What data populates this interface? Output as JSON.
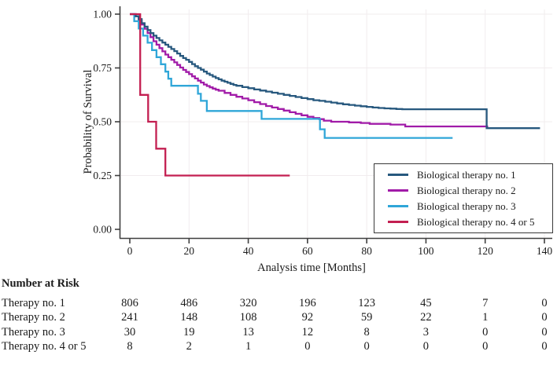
{
  "chart_data": {
    "type": "line",
    "subtype": "kaplan-meier-step",
    "title": "",
    "xlabel": "Analysis time [Months]",
    "ylabel": "Probability of Survival",
    "xlim": [
      0,
      140
    ],
    "ylim": [
      0.0,
      1.0
    ],
    "grid": true,
    "legend_position": "lower right",
    "x_ticks": [
      0,
      20,
      40,
      60,
      80,
      100,
      120,
      140
    ],
    "y_ticks": [
      {
        "value": 1.0,
        "label": "1.00"
      },
      {
        "value": 0.75,
        "label": "0.75"
      },
      {
        "value": 0.5,
        "label": "0.50"
      },
      {
        "value": 0.25,
        "label": "0.25"
      },
      {
        "value": 0.0,
        "label": "0.00"
      }
    ],
    "series": [
      {
        "name": "Biological therapy no. 2",
        "color": "#a11ba8",
        "points": [
          [
            0,
            1
          ],
          [
            2,
            0.99
          ],
          [
            3,
            0.972
          ],
          [
            4,
            0.952
          ],
          [
            5,
            0.932
          ],
          [
            6,
            0.912
          ],
          [
            7,
            0.893
          ],
          [
            8,
            0.874
          ],
          [
            9,
            0.858
          ],
          [
            10,
            0.842
          ],
          [
            11,
            0.827
          ],
          [
            12,
            0.812
          ],
          [
            13,
            0.8
          ],
          [
            14,
            0.788
          ],
          [
            15,
            0.776
          ],
          [
            16,
            0.764
          ],
          [
            17,
            0.752
          ],
          [
            18,
            0.741
          ],
          [
            19,
            0.731
          ],
          [
            20,
            0.721
          ],
          [
            21,
            0.711
          ],
          [
            22,
            0.701
          ],
          [
            23,
            0.691
          ],
          [
            24,
            0.682
          ],
          [
            25,
            0.673
          ],
          [
            26,
            0.666
          ],
          [
            27,
            0.66
          ],
          [
            28,
            0.654
          ],
          [
            29,
            0.649
          ],
          [
            30,
            0.644
          ],
          [
            32,
            0.634
          ],
          [
            34,
            0.625
          ],
          [
            36,
            0.616
          ],
          [
            38,
            0.608
          ],
          [
            40,
            0.6
          ],
          [
            42,
            0.591
          ],
          [
            44,
            0.582
          ],
          [
            46,
            0.573
          ],
          [
            48,
            0.566
          ],
          [
            50,
            0.559
          ],
          [
            52,
            0.552
          ],
          [
            54,
            0.544
          ],
          [
            56,
            0.537
          ],
          [
            58,
            0.53
          ],
          [
            60,
            0.523
          ],
          [
            62,
            0.517
          ],
          [
            64,
            0.512
          ],
          [
            65.5,
            0.505
          ],
          [
            68,
            0.5
          ],
          [
            74,
            0.497
          ],
          [
            78,
            0.494
          ],
          [
            81,
            0.49
          ],
          [
            88,
            0.487
          ],
          [
            93,
            0.478
          ],
          [
            121,
            0.478
          ]
        ]
      },
      {
        "name": "Biological therapy no. 3",
        "color": "#2fa6d8",
        "points": [
          [
            0,
            1
          ],
          [
            1.5,
            0.967
          ],
          [
            3,
            0.933
          ],
          [
            4.5,
            0.9
          ],
          [
            6,
            0.867
          ],
          [
            7.5,
            0.833
          ],
          [
            9,
            0.8
          ],
          [
            10.5,
            0.767
          ],
          [
            12,
            0.733
          ],
          [
            13,
            0.7
          ],
          [
            14,
            0.667
          ],
          [
            23,
            0.63
          ],
          [
            24,
            0.597
          ],
          [
            26,
            0.55
          ],
          [
            44.5,
            0.513
          ],
          [
            64.2,
            0.465
          ],
          [
            65.8,
            0.425
          ],
          [
            109,
            0.425
          ]
        ]
      },
      {
        "name": "Biological therapy no. 1",
        "color": "#27587e",
        "points": [
          [
            0,
            1
          ],
          [
            2,
            0.99
          ],
          [
            3,
            0.977
          ],
          [
            4,
            0.958
          ],
          [
            5,
            0.942
          ],
          [
            6,
            0.926
          ],
          [
            7,
            0.912
          ],
          [
            8,
            0.9
          ],
          [
            9,
            0.889
          ],
          [
            10,
            0.878
          ],
          [
            11,
            0.868
          ],
          [
            12,
            0.858
          ],
          [
            13,
            0.848
          ],
          [
            14,
            0.838
          ],
          [
            15,
            0.828
          ],
          [
            16,
            0.817
          ],
          [
            17,
            0.806
          ],
          [
            18,
            0.796
          ],
          [
            19,
            0.788
          ],
          [
            20,
            0.778
          ],
          [
            21,
            0.768
          ],
          [
            22,
            0.758
          ],
          [
            23,
            0.75
          ],
          [
            24,
            0.742
          ],
          [
            25,
            0.733
          ],
          [
            26,
            0.724
          ],
          [
            27,
            0.717
          ],
          [
            28,
            0.71
          ],
          [
            29,
            0.703
          ],
          [
            30,
            0.697
          ],
          [
            31,
            0.691
          ],
          [
            32,
            0.686
          ],
          [
            33,
            0.681
          ],
          [
            34,
            0.676
          ],
          [
            35,
            0.671
          ],
          [
            36,
            0.667
          ],
          [
            38,
            0.661
          ],
          [
            40,
            0.656
          ],
          [
            42,
            0.65
          ],
          [
            44,
            0.645
          ],
          [
            46,
            0.64
          ],
          [
            48,
            0.635
          ],
          [
            50,
            0.63
          ],
          [
            52,
            0.625
          ],
          [
            54,
            0.62
          ],
          [
            56,
            0.615
          ],
          [
            58,
            0.61
          ],
          [
            60,
            0.605
          ],
          [
            62,
            0.6
          ],
          [
            64,
            0.597
          ],
          [
            66,
            0.593
          ],
          [
            68,
            0.589
          ],
          [
            70,
            0.585
          ],
          [
            72,
            0.581
          ],
          [
            74,
            0.578
          ],
          [
            76,
            0.575
          ],
          [
            78,
            0.572
          ],
          [
            80,
            0.569
          ],
          [
            82,
            0.566
          ],
          [
            84,
            0.564
          ],
          [
            86,
            0.562
          ],
          [
            88,
            0.561
          ],
          [
            90,
            0.559
          ],
          [
            92,
            0.558
          ],
          [
            120.5,
            0.47
          ],
          [
            138.5,
            0.47
          ]
        ]
      },
      {
        "name": "Biological therapy no. 4 or 5",
        "color": "#c31f51",
        "points": [
          [
            0,
            1
          ],
          [
            3.5,
            0.625
          ],
          [
            6.2,
            0.5
          ],
          [
            8.9,
            0.375
          ],
          [
            12,
            0.25
          ],
          [
            54,
            0.25
          ]
        ]
      }
    ],
    "legend_order": [
      "Biological therapy no. 1",
      "Biological therapy no. 2",
      "Biological therapy no. 3",
      "Biological therapy no. 4 or 5"
    ]
  },
  "risk_table": {
    "header": "Number at Risk",
    "time_points": [
      0,
      20,
      40,
      60,
      80,
      100,
      120,
      140
    ],
    "rows": [
      {
        "label": "Therapy no. 1",
        "values": [
          806,
          486,
          320,
          196,
          123,
          45,
          7,
          0
        ]
      },
      {
        "label": "Therapy no. 2",
        "values": [
          241,
          148,
          108,
          92,
          59,
          22,
          1,
          0
        ]
      },
      {
        "label": "Therapy no. 3",
        "values": [
          30,
          19,
          13,
          12,
          8,
          3,
          0,
          0
        ]
      },
      {
        "label": "Therapy no. 4 or 5",
        "values": [
          8,
          2,
          1,
          0,
          0,
          0,
          0,
          0
        ]
      }
    ]
  },
  "style": {
    "axis_color": "#3f3f3f",
    "grid_color": "#f1ecee",
    "text_color": "#1b1b1b"
  }
}
